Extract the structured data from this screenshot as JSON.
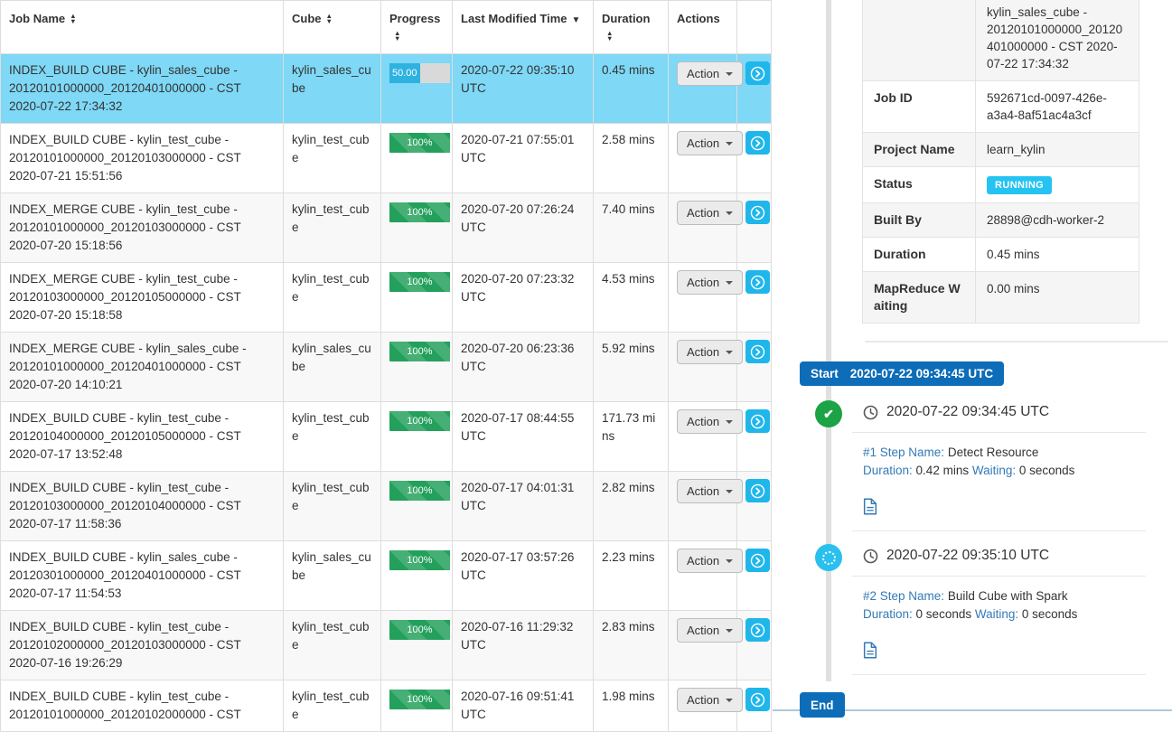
{
  "icons": {
    "sort_asc": "▲",
    "sort_desc": "▼",
    "check": "✔"
  },
  "colors": {
    "selected_row": "#7ed8f6",
    "progress_running": "#2eb2e0",
    "progress_success": "#23a05b",
    "detail_button": "#1fb6ea",
    "status_running_badge": "#25c3f2",
    "start_end_badge": "#0d6db8",
    "step_done_circle": "#1ba345",
    "step_running_circle": "#29c0ef",
    "link_blue": "#337ab7"
  },
  "jobs_table": {
    "action_label": "Action",
    "columns": [
      {
        "label": "Job Name",
        "sort": "both"
      },
      {
        "label": "Cube",
        "sort": "both"
      },
      {
        "label": "Progress",
        "sort": "both"
      },
      {
        "label": "Last Modified Time",
        "sort": "desc"
      },
      {
        "label": "Duration",
        "sort": "both"
      },
      {
        "label": "Actions",
        "sort": "none"
      },
      {
        "label": "",
        "sort": "none"
      }
    ],
    "rows": [
      {
        "job_name": "INDEX_BUILD CUBE - kylin_sales_cube - 20120101000000_20120401000000 - CST 2020-07-22 17:34:32",
        "cube": "kylin_sales_cube",
        "progress_pct": 50,
        "progress_label": "50.00",
        "last_modified": "2020-07-22 09:35:10 UTC",
        "duration": "0.45 mins",
        "selected": true
      },
      {
        "job_name": "INDEX_BUILD CUBE - kylin_test_cube - 20120101000000_20120103000000 - CST 2020-07-21 15:51:56",
        "cube": "kylin_test_cube",
        "progress_pct": 100,
        "progress_label": "100%",
        "last_modified": "2020-07-21 07:55:01 UTC",
        "duration": "2.58 mins",
        "selected": false
      },
      {
        "job_name": "INDEX_MERGE CUBE - kylin_test_cube - 20120101000000_20120103000000 - CST 2020-07-20 15:18:56",
        "cube": "kylin_test_cube",
        "progress_pct": 100,
        "progress_label": "100%",
        "last_modified": "2020-07-20 07:26:24 UTC",
        "duration": "7.40 mins",
        "selected": false
      },
      {
        "job_name": "INDEX_MERGE CUBE - kylin_test_cube - 20120103000000_20120105000000 - CST 2020-07-20 15:18:58",
        "cube": "kylin_test_cube",
        "progress_pct": 100,
        "progress_label": "100%",
        "last_modified": "2020-07-20 07:23:32 UTC",
        "duration": "4.53 mins",
        "selected": false
      },
      {
        "job_name": "INDEX_MERGE CUBE - kylin_sales_cube - 20120101000000_20120401000000 - CST 2020-07-20 14:10:21",
        "cube": "kylin_sales_cube",
        "progress_pct": 100,
        "progress_label": "100%",
        "last_modified": "2020-07-20 06:23:36 UTC",
        "duration": "5.92 mins",
        "selected": false
      },
      {
        "job_name": "INDEX_BUILD CUBE - kylin_test_cube - 20120104000000_20120105000000 - CST 2020-07-17 13:52:48",
        "cube": "kylin_test_cube",
        "progress_pct": 100,
        "progress_label": "100%",
        "last_modified": "2020-07-17 08:44:55 UTC",
        "duration": "171.73 mins",
        "selected": false
      },
      {
        "job_name": "INDEX_BUILD CUBE - kylin_test_cube - 20120103000000_20120104000000 - CST 2020-07-17 11:58:36",
        "cube": "kylin_test_cube",
        "progress_pct": 100,
        "progress_label": "100%",
        "last_modified": "2020-07-17 04:01:31 UTC",
        "duration": "2.82 mins",
        "selected": false
      },
      {
        "job_name": "INDEX_BUILD CUBE - kylin_sales_cube - 20120301000000_20120401000000 - CST 2020-07-17 11:54:53",
        "cube": "kylin_sales_cube",
        "progress_pct": 100,
        "progress_label": "100%",
        "last_modified": "2020-07-17 03:57:26 UTC",
        "duration": "2.23 mins",
        "selected": false
      },
      {
        "job_name": "INDEX_BUILD CUBE - kylin_test_cube - 20120102000000_20120103000000 - CST 2020-07-16 19:26:29",
        "cube": "kylin_test_cube",
        "progress_pct": 100,
        "progress_label": "100%",
        "last_modified": "2020-07-16 11:29:32 UTC",
        "duration": "2.83 mins",
        "selected": false
      },
      {
        "job_name": "INDEX_BUILD CUBE - kylin_test_cube - 20120101000000_20120102000000 - CST",
        "cube": "kylin_test_cube",
        "progress_pct": 100,
        "progress_label": "100%",
        "last_modified": "2020-07-16 09:51:41 UTC",
        "duration": "1.98 mins",
        "selected": false
      }
    ]
  },
  "detail_panel": {
    "rows": [
      {
        "label": "",
        "value": "kylin_sales_cube - 20120101000000_20120401000000 - CST 2020-07-22 17:34:32",
        "badge": false
      },
      {
        "label": "Job ID",
        "value": "592671cd-0097-426e-a3a4-8af51ac4a3cf",
        "badge": false
      },
      {
        "label": "Project Name",
        "value": "learn_kylin",
        "badge": false
      },
      {
        "label": "Status",
        "value": "RUNNING",
        "badge": true
      },
      {
        "label": "Built By",
        "value": "28898@cdh-worker-2",
        "badge": false
      },
      {
        "label": "Duration",
        "value": "0.45 mins",
        "badge": false
      },
      {
        "label": "MapReduce Waiting",
        "value": "0.00 mins",
        "badge": false
      }
    ]
  },
  "timeline": {
    "start_badge": {
      "label": "Start",
      "time": "2020-07-22 09:34:45 UTC"
    },
    "end_badge": {
      "label": "End"
    },
    "steps": [
      {
        "time": "2020-07-22 09:34:45 UTC",
        "step_label": "#1 Step Name:",
        "step_name": "Detect Resource",
        "duration_label": "Duration:",
        "duration": "0.42 mins",
        "waiting_label": "Waiting:",
        "waiting": "0 seconds",
        "state": "done"
      },
      {
        "time": "2020-07-22 09:35:10 UTC",
        "step_label": "#2 Step Name:",
        "step_name": "Build Cube with Spark",
        "duration_label": "Duration:",
        "duration": "0 seconds",
        "waiting_label": "Waiting:",
        "waiting": "0 seconds",
        "state": "running"
      }
    ]
  }
}
